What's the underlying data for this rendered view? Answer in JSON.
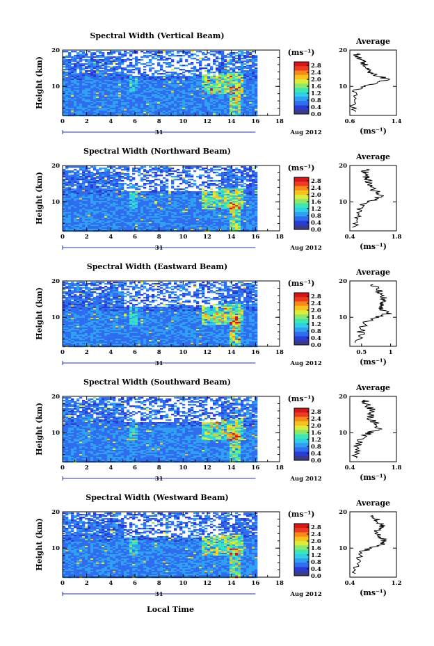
{
  "figure": {
    "xlabel": "Local Time",
    "date_label": "Aug 2012",
    "day_label": "31",
    "ylabel": "Height (km)",
    "colorbar_unit": "(ms⁻¹)",
    "avg_title": "Average",
    "avg_unit": "(ms⁻¹)"
  },
  "chart_data": [
    {
      "type": "heatmap",
      "title": "Spectral Width (Vertical Beam)",
      "xlabel": "Local Time",
      "ylabel": "Height (km)",
      "xlim": [
        0,
        18
      ],
      "xticks": [
        0,
        2,
        4,
        6,
        8,
        10,
        12,
        14,
        16,
        18
      ],
      "ylim": [
        2,
        20
      ],
      "yticks": [
        10,
        20
      ],
      "data_end": 16,
      "colorbar": {
        "unit": "(ms⁻¹)",
        "ticks": [
          0.0,
          0.4,
          0.8,
          1.2,
          1.6,
          2.0,
          2.4,
          2.8
        ],
        "range": [
          0,
          3.0
        ]
      },
      "average_profile": {
        "title": "Average",
        "xlabel": "(ms⁻¹)",
        "xlim": [
          0.6,
          1.4
        ],
        "xticks": [
          0.6,
          1.4
        ],
        "height": [
          3,
          5,
          7,
          9,
          10,
          11,
          12,
          13,
          14,
          15,
          16,
          17,
          18,
          19
        ],
        "values": [
          0.65,
          0.66,
          0.67,
          0.7,
          0.85,
          1.05,
          1.25,
          1.05,
          0.95,
          0.9,
          0.85,
          0.8,
          0.75,
          0.72
        ]
      }
    },
    {
      "type": "heatmap",
      "title": "Spectral Width (Northward Beam)",
      "xlabel": "Local Time",
      "ylabel": "Height (km)",
      "xlim": [
        0,
        18
      ],
      "xticks": [
        0,
        2,
        4,
        6,
        8,
        10,
        12,
        14,
        16,
        18
      ],
      "ylim": [
        2,
        20
      ],
      "yticks": [
        10,
        20
      ],
      "data_end": 16,
      "colorbar": {
        "unit": "(ms⁻¹)",
        "ticks": [
          0.0,
          0.4,
          0.8,
          1.2,
          1.6,
          2.0,
          2.4,
          2.8
        ],
        "range": [
          0,
          3.0
        ]
      },
      "average_profile": {
        "title": "Average",
        "xlabel": "(ms⁻¹)",
        "xlim": [
          0.4,
          1.8
        ],
        "xticks": [
          0.4,
          1.8
        ],
        "height": [
          3,
          5,
          7,
          9,
          10,
          11,
          12,
          13,
          14,
          15,
          16,
          17,
          18,
          19
        ],
        "values": [
          0.55,
          0.6,
          0.65,
          0.75,
          1.0,
          1.2,
          1.35,
          1.15,
          1.05,
          1.0,
          0.95,
          0.9,
          0.85,
          0.9
        ]
      }
    },
    {
      "type": "heatmap",
      "title": "Spectral Width (Eastward Beam)",
      "xlabel": "Local Time",
      "ylabel": "Height (km)",
      "xlim": [
        0,
        18
      ],
      "xticks": [
        0,
        2,
        4,
        6,
        8,
        10,
        12,
        14,
        16,
        18
      ],
      "ylim": [
        2,
        20
      ],
      "yticks": [
        10,
        20
      ],
      "data_end": 16,
      "colorbar": {
        "unit": "(ms⁻¹)",
        "ticks": [
          0.0,
          0.4,
          0.8,
          1.2,
          1.6,
          2.0,
          2.4,
          2.8
        ],
        "range": [
          0,
          3.0
        ]
      },
      "average_profile": {
        "title": "Average",
        "xlabel": "(ms⁻¹)",
        "xlim": [
          0.3,
          1.1
        ],
        "xticks": [
          0.5,
          1.0
        ],
        "height": [
          3,
          5,
          7,
          9,
          10,
          11,
          12,
          13,
          14,
          15,
          16,
          17,
          18,
          19
        ],
        "values": [
          0.45,
          0.48,
          0.5,
          0.6,
          0.75,
          0.95,
          0.85,
          0.8,
          0.9,
          0.85,
          0.9,
          0.8,
          0.75,
          0.7
        ]
      }
    },
    {
      "type": "heatmap",
      "title": "Spectral Width (Southward Beam)",
      "xlabel": "Local Time",
      "ylabel": "Height (km)",
      "xlim": [
        0,
        18
      ],
      "xticks": [
        0,
        2,
        4,
        6,
        8,
        10,
        12,
        14,
        16,
        18
      ],
      "ylim": [
        2,
        20
      ],
      "yticks": [
        10,
        20
      ],
      "data_end": 16,
      "colorbar": {
        "unit": "(ms⁻¹)",
        "ticks": [
          0.0,
          0.4,
          0.8,
          1.2,
          1.6,
          2.0,
          2.4,
          2.8
        ],
        "range": [
          0,
          3.0
        ]
      },
      "average_profile": {
        "title": "Average",
        "xlabel": "(ms⁻¹)",
        "xlim": [
          0.4,
          1.8
        ],
        "xticks": [
          0.4,
          1.8
        ],
        "height": [
          3,
          5,
          7,
          9,
          10,
          11,
          12,
          13,
          14,
          15,
          16,
          17,
          18,
          19
        ],
        "values": [
          0.55,
          0.6,
          0.65,
          0.8,
          1.0,
          1.25,
          1.3,
          1.1,
          1.0,
          1.05,
          1.1,
          1.0,
          0.9,
          0.85
        ]
      }
    },
    {
      "type": "heatmap",
      "title": "Spectral Width (Westward Beam)",
      "xlabel": "Local Time",
      "ylabel": "Height (km)",
      "xlim": [
        0,
        18
      ],
      "xticks": [
        0,
        2,
        4,
        6,
        8,
        10,
        12,
        14,
        16,
        18
      ],
      "ylim": [
        2,
        20
      ],
      "yticks": [
        10,
        20
      ],
      "data_end": 16,
      "colorbar": {
        "unit": "(ms⁻¹)",
        "ticks": [
          0.0,
          0.4,
          0.8,
          1.2,
          1.6,
          2.0,
          2.4,
          2.8
        ],
        "range": [
          0,
          3.0
        ]
      },
      "average_profile": {
        "title": "Average",
        "xlabel": "(ms⁻¹)",
        "xlim": [
          0.4,
          1.2
        ],
        "xticks": [
          0.4,
          1.2
        ],
        "height": [
          3,
          5,
          7,
          9,
          10,
          11,
          12,
          13,
          14,
          15,
          16,
          17,
          18,
          19
        ],
        "values": [
          0.48,
          0.5,
          0.52,
          0.6,
          0.75,
          0.95,
          1.0,
          0.9,
          0.85,
          0.9,
          0.95,
          0.9,
          0.85,
          0.8
        ]
      }
    }
  ],
  "colormap": [
    "#3b3b8c",
    "#2a3cd6",
    "#2f6cf0",
    "#2fa0f2",
    "#2fd0e6",
    "#3fe7b0",
    "#8ee66a",
    "#dcec3a",
    "#f7c21e",
    "#f78a18",
    "#ee3a22",
    "#d21818"
  ],
  "colors": {
    "axis": "#000000",
    "profile_line": "#000000",
    "blue_line": "#2030c0",
    "background": "#ffffff"
  }
}
